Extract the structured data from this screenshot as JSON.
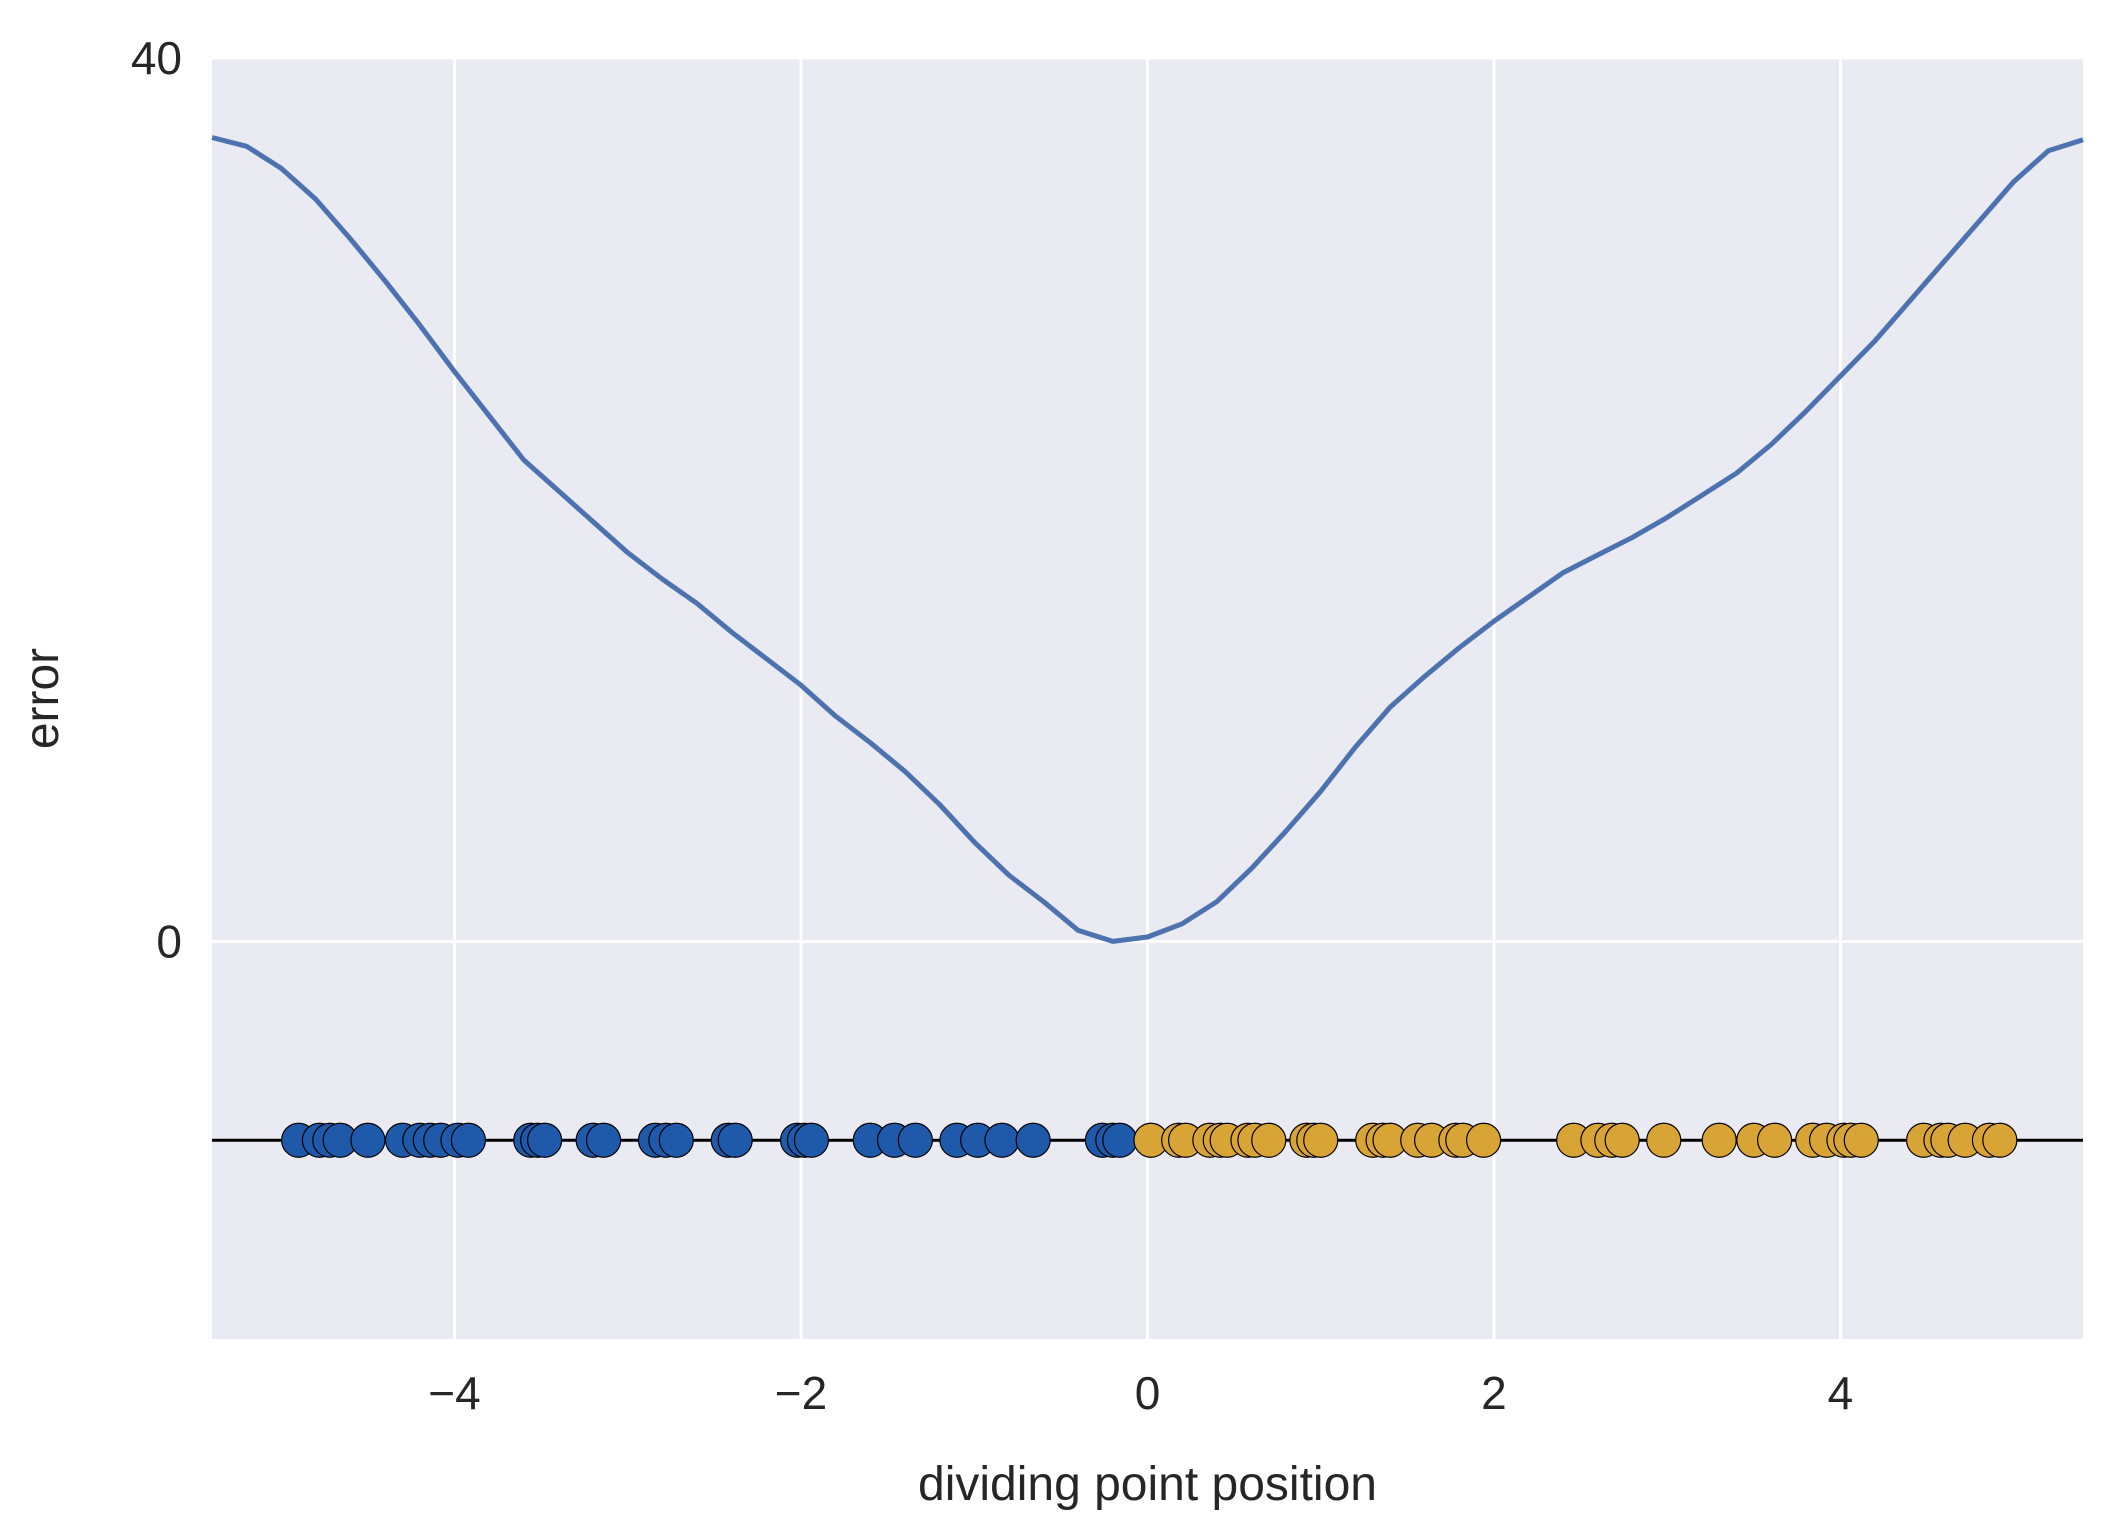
{
  "chart_data": {
    "type": "line",
    "xlabel": "dividing point position",
    "ylabel": "error",
    "xlim": [
      -5.4,
      5.4
    ],
    "ylim": [
      -18,
      40
    ],
    "x_ticks": [
      -4,
      -2,
      0,
      2,
      4
    ],
    "x_tick_labels": [
      "−4",
      "−2",
      "0",
      "2",
      "4"
    ],
    "y_ticks": [
      0,
      40
    ],
    "y_tick_labels": [
      "0",
      "40"
    ],
    "grid": true,
    "background": "#EAEAF2",
    "colors": {
      "curve": "#4C72B0",
      "class_a": "#1F5AAA",
      "class_b": "#D8A435",
      "baseline": "#000000",
      "grid": "#FFFFFF"
    },
    "series": [
      {
        "kind": "line",
        "x": [
          -5.4,
          -5.2,
          -5.0,
          -4.8,
          -4.6,
          -4.4,
          -4.2,
          -4.0,
          -3.8,
          -3.6,
          -3.4,
          -3.2,
          -3.0,
          -2.8,
          -2.6,
          -2.4,
          -2.2,
          -2.0,
          -1.8,
          -1.6,
          -1.4,
          -1.2,
          -1.0,
          -0.8,
          -0.6,
          -0.4,
          -0.2,
          0.0,
          0.2,
          0.4,
          0.6,
          0.8,
          1.0,
          1.2,
          1.4,
          1.6,
          1.8,
          2.0,
          2.2,
          2.4,
          2.6,
          2.8,
          3.0,
          3.2,
          3.4,
          3.6,
          3.8,
          4.0,
          4.2,
          4.4,
          4.6,
          4.8,
          5.0,
          5.2,
          5.4
        ],
        "y": [
          36.4,
          36.0,
          35.0,
          33.6,
          31.8,
          29.9,
          27.9,
          25.8,
          23.8,
          21.8,
          20.4,
          19.0,
          17.6,
          16.4,
          15.3,
          14.0,
          12.8,
          11.6,
          10.2,
          9.0,
          7.7,
          6.2,
          4.5,
          3.0,
          1.8,
          0.5,
          0.0,
          0.2,
          0.8,
          1.8,
          3.3,
          5.0,
          6.8,
          8.8,
          10.6,
          12.0,
          13.3,
          14.5,
          15.6,
          16.7,
          17.5,
          18.3,
          19.2,
          20.2,
          21.2,
          22.5,
          24.0,
          25.6,
          27.2,
          29.0,
          30.8,
          32.6,
          34.4,
          35.8,
          36.3
        ]
      },
      {
        "kind": "scatter",
        "x": [
          -4.9,
          -4.78,
          -4.72,
          -4.66,
          -4.5,
          -4.3,
          -4.2,
          -4.14,
          -4.08,
          -3.98,
          -3.92,
          -3.56,
          -3.52,
          -3.48,
          -3.2,
          -3.14,
          -2.84,
          -2.78,
          -2.72,
          -2.42,
          -2.38,
          -2.02,
          -1.98,
          -1.94,
          -1.6,
          -1.46,
          -1.34,
          -1.1,
          -0.98,
          -0.84,
          -0.66,
          -0.26,
          -0.2,
          -0.16
        ],
        "y": [
          -9,
          -9,
          -9,
          -9,
          -9,
          -9,
          -9,
          -9,
          -9,
          -9,
          -9,
          -9,
          -9,
          -9,
          -9,
          -9,
          -9,
          -9,
          -9,
          -9,
          -9,
          -9,
          -9,
          -9,
          -9,
          -9,
          -9,
          -9,
          -9,
          -9,
          -9,
          -9,
          -9,
          -9
        ]
      },
      {
        "kind": "scatter",
        "x": [
          0.02,
          0.18,
          0.22,
          0.36,
          0.42,
          0.46,
          0.58,
          0.62,
          0.7,
          0.92,
          0.96,
          1.0,
          1.3,
          1.36,
          1.4,
          1.56,
          1.64,
          1.78,
          1.82,
          1.94,
          2.46,
          2.6,
          2.68,
          2.74,
          2.98,
          3.3,
          3.5,
          3.62,
          3.84,
          3.92,
          4.02,
          4.06,
          4.12,
          4.48,
          4.58,
          4.62,
          4.72,
          4.86,
          4.92
        ],
        "y": [
          -9,
          -9,
          -9,
          -9,
          -9,
          -9,
          -9,
          -9,
          -9,
          -9,
          -9,
          -9,
          -9,
          -9,
          -9,
          -9,
          -9,
          -9,
          -9,
          -9,
          -9,
          -9,
          -9,
          -9,
          -9,
          -9,
          -9,
          -9,
          -9,
          -9,
          -9,
          -9,
          -9,
          -9,
          -9,
          -9,
          -9,
          -9,
          -9
        ]
      }
    ],
    "hline": -9
  }
}
